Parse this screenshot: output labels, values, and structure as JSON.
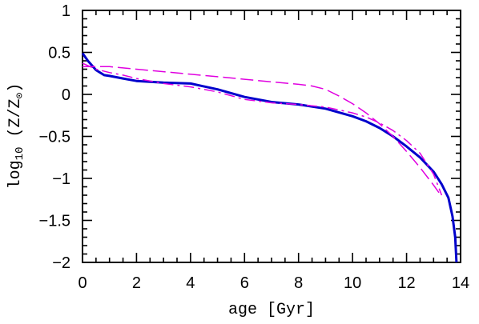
{
  "chart_data": {
    "type": "line",
    "title": "",
    "xlabel": "age [Gyr]",
    "ylabel_parts": {
      "log": "log",
      "base": "10",
      "quantity": " (Z/Z",
      "sun_symbol": "⊙",
      "close": ")"
    },
    "xlim": [
      0,
      14
    ],
    "ylim": [
      -2,
      1
    ],
    "x_ticks": [
      "0",
      "2",
      "4",
      "6",
      "8",
      "10",
      "12",
      "14"
    ],
    "y_ticks": [
      "1",
      "0.5",
      "0",
      "−0.5",
      "−1",
      "−1.5",
      "−2"
    ],
    "grid": false,
    "legend": "none",
    "series": [
      {
        "style": "solid",
        "color": "#0000cc",
        "x": [
          0.0,
          0.2,
          0.5,
          0.8,
          1.0,
          1.5,
          2.0,
          3.0,
          4.0,
          5.0,
          6.0,
          7.0,
          8.0,
          9.0,
          10.0,
          10.5,
          11.0,
          11.5,
          12.0,
          12.5,
          13.0,
          13.3,
          13.55,
          13.7,
          13.8,
          13.85
        ],
        "y": [
          0.49,
          0.4,
          0.29,
          0.23,
          0.22,
          0.19,
          0.16,
          0.14,
          0.13,
          0.06,
          -0.03,
          -0.09,
          -0.12,
          -0.17,
          -0.26,
          -0.32,
          -0.4,
          -0.5,
          -0.62,
          -0.75,
          -0.92,
          -1.07,
          -1.23,
          -1.45,
          -1.7,
          -2.0
        ]
      },
      {
        "style": "dashed",
        "color": "#e000e0",
        "x": [
          0.0,
          1.0,
          2.0,
          3.0,
          4.0,
          5.0,
          6.0,
          7.0,
          8.0,
          8.5,
          9.0,
          9.5,
          10.0,
          10.5,
          11.0,
          11.5,
          12.0,
          12.5,
          13.0,
          13.2
        ],
        "y": [
          0.33,
          0.33,
          0.3,
          0.27,
          0.24,
          0.21,
          0.18,
          0.15,
          0.12,
          0.1,
          0.06,
          -0.02,
          -0.11,
          -0.22,
          -0.35,
          -0.5,
          -0.68,
          -0.87,
          -1.08,
          -1.17
        ]
      },
      {
        "style": "dashdot",
        "color": "#e000e0",
        "x": [
          0.0,
          0.5,
          1.0,
          1.5,
          2.0,
          3.0,
          4.0,
          5.0,
          6.0,
          7.0,
          8.0,
          9.0,
          10.0,
          10.5,
          11.0,
          11.5,
          12.0,
          12.5,
          13.0,
          13.3
        ],
        "y": [
          0.37,
          0.3,
          0.26,
          0.23,
          0.19,
          0.13,
          0.09,
          0.03,
          -0.06,
          -0.1,
          -0.12,
          -0.15,
          -0.22,
          -0.27,
          -0.34,
          -0.43,
          -0.55,
          -0.7,
          -0.95,
          -1.2
        ]
      }
    ]
  }
}
